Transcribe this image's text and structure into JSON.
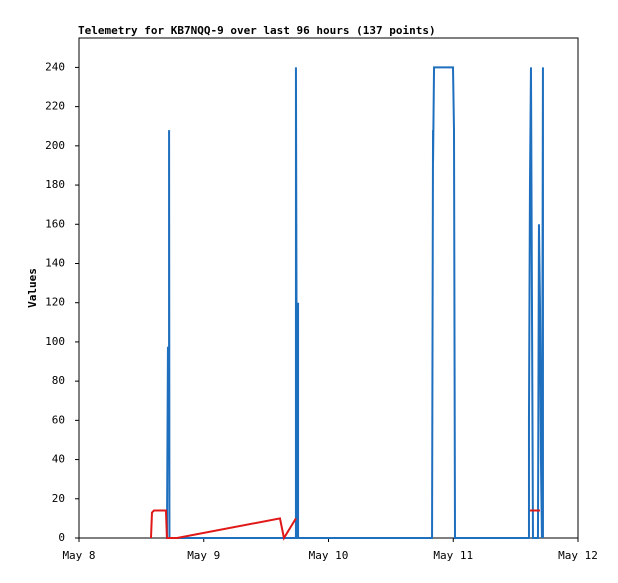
{
  "chart_data": {
    "type": "line",
    "title": "Telemetry for KB7NQQ-9 over last 96 hours (137 points)",
    "y_label": "Values",
    "xlim": [
      0,
      4
    ],
    "xticks": [
      {
        "value": 0,
        "label": "May 8"
      },
      {
        "value": 1,
        "label": "May 9"
      },
      {
        "value": 2,
        "label": "May 10"
      },
      {
        "value": 3,
        "label": "May 11"
      },
      {
        "value": 4,
        "label": "May 12"
      }
    ],
    "ylim": [
      0,
      255
    ],
    "yticks": [
      0,
      20,
      40,
      60,
      80,
      100,
      120,
      140,
      160,
      180,
      200,
      220,
      240
    ],
    "series": [
      {
        "color": "#1f6fbf",
        "x": [
          0.705,
          0.713,
          0.722,
          0.722,
          0.725,
          1.739,
          1.739,
          1.748,
          1.756,
          1.756,
          2.83,
          2.838,
          2.838,
          2.846,
          2.998,
          3.006,
          3.014,
          3.607,
          3.607,
          3.615,
          3.623,
          3.631,
          3.639,
          3.679,
          3.687,
          3.695,
          3.703,
          3.711,
          3.719,
          3.719
        ],
        "values": [
          0,
          97,
          97,
          208,
          0,
          0,
          240,
          0,
          120,
          0,
          0,
          208,
          192,
          240,
          240,
          208,
          0,
          0,
          60,
          180,
          240,
          120,
          0,
          0,
          160,
          120,
          40,
          0,
          240,
          0
        ]
      },
      {
        "color": "#e01818",
        "x": [
          0.577,
          0.585,
          0.601,
          0.697,
          0.705,
          0.786,
          1.611,
          1.643,
          1.739,
          null,
          3.615,
          3.695
        ],
        "values": [
          0,
          13,
          14,
          14,
          0,
          0,
          10,
          0,
          10,
          null,
          14,
          14
        ]
      }
    ]
  }
}
